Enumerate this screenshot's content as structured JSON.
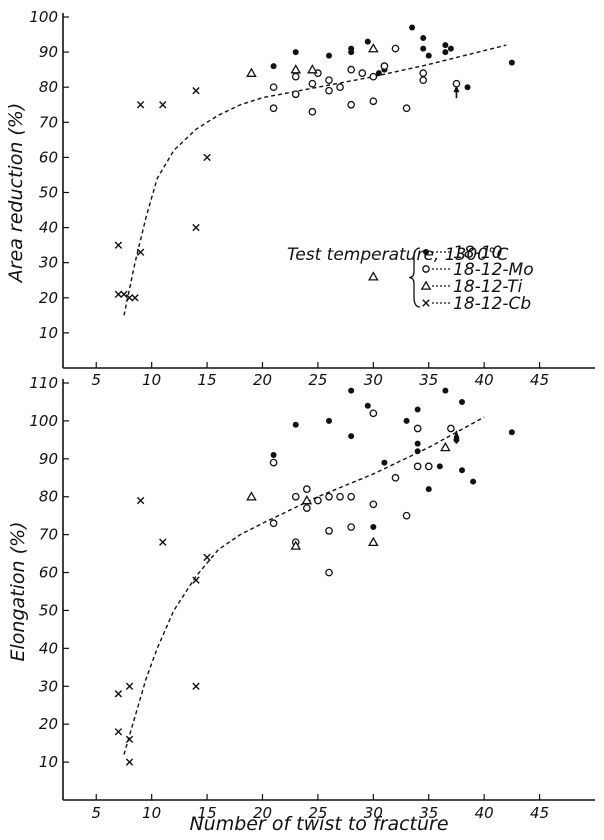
{
  "chart_data": [
    {
      "type": "scatter",
      "xlabel": "",
      "ylabel": "Area reduction (%)",
      "xlim": [
        2,
        50
      ],
      "ylim": [
        0,
        100
      ],
      "xticks": [
        "5",
        "10",
        "15",
        "20",
        "25",
        "30",
        "35",
        "40",
        "45"
      ],
      "yticks": [
        "10",
        "20",
        "30",
        "40",
        "50",
        "60",
        "70",
        "80",
        "90",
        "100"
      ],
      "annotation": "Test temperature, 1300°C",
      "legend": [
        {
          "marker": "dot",
          "label": "18-10"
        },
        {
          "marker": "circle",
          "label": "18-12-Mo"
        },
        {
          "marker": "triangle",
          "label": "18-12-Ti"
        },
        {
          "marker": "cross",
          "label": "18-12-Cb"
        }
      ],
      "series": [
        {
          "marker": "dot",
          "points": [
            [
              21,
              86
            ],
            [
              23,
              90
            ],
            [
              26,
              89
            ],
            [
              28,
              90
            ],
            [
              28,
              91
            ],
            [
              29.5,
              93
            ],
            [
              30.5,
              84
            ],
            [
              31,
              85
            ],
            [
              33.5,
              97
            ],
            [
              34.5,
              94
            ],
            [
              34.5,
              91
            ],
            [
              35,
              89
            ],
            [
              36.5,
              92
            ],
            [
              37,
              91
            ],
            [
              36.5,
              90
            ],
            [
              38.5,
              80
            ],
            [
              42.5,
              87
            ]
          ]
        },
        {
          "marker": "circle",
          "points": [
            [
              21,
              80
            ],
            [
              21,
              74
            ],
            [
              23,
              83
            ],
            [
              23,
              78
            ],
            [
              24.5,
              73
            ],
            [
              24.5,
              81
            ],
            [
              25,
              84
            ],
            [
              26,
              82
            ],
            [
              26,
              79
            ],
            [
              27,
              80
            ],
            [
              28,
              85
            ],
            [
              28,
              75
            ],
            [
              29,
              84
            ],
            [
              30,
              83
            ],
            [
              30,
              76
            ],
            [
              31,
              86
            ],
            [
              32,
              91
            ],
            [
              33,
              74
            ],
            [
              34.5,
              84
            ],
            [
              34.5,
              82
            ],
            [
              37.5,
              81
            ]
          ]
        },
        {
          "marker": "triangle",
          "points": [
            [
              19,
              84
            ],
            [
              23,
              85
            ],
            [
              24.5,
              85
            ],
            [
              30,
              91
            ],
            [
              30,
              26
            ]
          ]
        },
        {
          "marker": "cross",
          "points": [
            [
              7,
              35
            ],
            [
              7,
              21
            ],
            [
              7.5,
              21
            ],
            [
              8,
              20
            ],
            [
              8.5,
              20
            ],
            [
              9,
              33
            ],
            [
              9,
              75
            ],
            [
              11,
              75
            ],
            [
              14,
              79
            ],
            [
              14,
              40
            ],
            [
              15,
              60
            ]
          ]
        }
      ],
      "trend": [
        [
          7.5,
          15
        ],
        [
          8.5,
          30
        ],
        [
          9.5,
          43
        ],
        [
          10.5,
          54
        ],
        [
          12,
          62
        ],
        [
          14,
          68
        ],
        [
          16,
          72
        ],
        [
          18,
          75
        ],
        [
          20,
          77
        ],
        [
          25,
          80
        ],
        [
          30,
          83
        ],
        [
          35,
          86.5
        ],
        [
          42,
          92
        ]
      ],
      "trend_end_marker": [
        37.5,
        78
      ]
    },
    {
      "type": "scatter",
      "xlabel": "Number of twist to fracture",
      "ylabel": "Elongation (%)",
      "xlim": [
        2,
        50
      ],
      "ylim": [
        0,
        110
      ],
      "xticks": [
        "5",
        "10",
        "15",
        "20",
        "25",
        "30",
        "35",
        "40",
        "45"
      ],
      "yticks": [
        "10",
        "20",
        "30",
        "40",
        "50",
        "60",
        "70",
        "80",
        "90",
        "100",
        "110"
      ],
      "series": [
        {
          "marker": "dot",
          "points": [
            [
              21,
              91
            ],
            [
              23,
              99
            ],
            [
              26,
              100
            ],
            [
              28,
              108
            ],
            [
              28,
              96
            ],
            [
              29.5,
              104
            ],
            [
              30,
              72
            ],
            [
              31,
              89
            ],
            [
              33,
              100
            ],
            [
              34,
              103
            ],
            [
              34,
              94
            ],
            [
              34,
              92
            ],
            [
              35,
              82
            ],
            [
              36,
              88
            ],
            [
              36.5,
              108
            ],
            [
              37.5,
              95
            ],
            [
              38,
              105
            ],
            [
              38,
              87
            ],
            [
              39,
              84
            ],
            [
              42.5,
              97
            ]
          ]
        },
        {
          "marker": "circle",
          "points": [
            [
              21,
              89
            ],
            [
              21,
              73
            ],
            [
              23,
              80
            ],
            [
              23,
              68
            ],
            [
              24,
              82
            ],
            [
              24,
              77
            ],
            [
              25,
              79
            ],
            [
              26,
              80
            ],
            [
              26,
              71
            ],
            [
              26,
              60
            ],
            [
              27,
              80
            ],
            [
              28,
              72
            ],
            [
              28,
              80
            ],
            [
              30,
              102
            ],
            [
              30,
              78
            ],
            [
              32,
              85
            ],
            [
              33,
              75
            ],
            [
              34,
              98
            ],
            [
              34,
              88
            ],
            [
              35,
              88
            ],
            [
              37,
              98
            ]
          ]
        },
        {
          "marker": "triangle",
          "points": [
            [
              19,
              80
            ],
            [
              23,
              67
            ],
            [
              24,
              79
            ],
            [
              30,
              68
            ],
            [
              36.5,
              93
            ]
          ]
        },
        {
          "marker": "cross",
          "points": [
            [
              7,
              28
            ],
            [
              7,
              18
            ],
            [
              8,
              30
            ],
            [
              8,
              16
            ],
            [
              8,
              10
            ],
            [
              9,
              79
            ],
            [
              11,
              68
            ],
            [
              14,
              58
            ],
            [
              14,
              30
            ],
            [
              15,
              64
            ]
          ]
        }
      ],
      "trend": [
        [
          7.5,
          12
        ],
        [
          8.5,
          22
        ],
        [
          9.5,
          32
        ],
        [
          10.5,
          40
        ],
        [
          12,
          50
        ],
        [
          14,
          59
        ],
        [
          16,
          66
        ],
        [
          18,
          70
        ],
        [
          20,
          73
        ],
        [
          25,
          80
        ],
        [
          30,
          86
        ],
        [
          35,
          93
        ],
        [
          40,
          101
        ]
      ],
      "trend_end_marker": [
        37.5,
        95
      ]
    }
  ]
}
